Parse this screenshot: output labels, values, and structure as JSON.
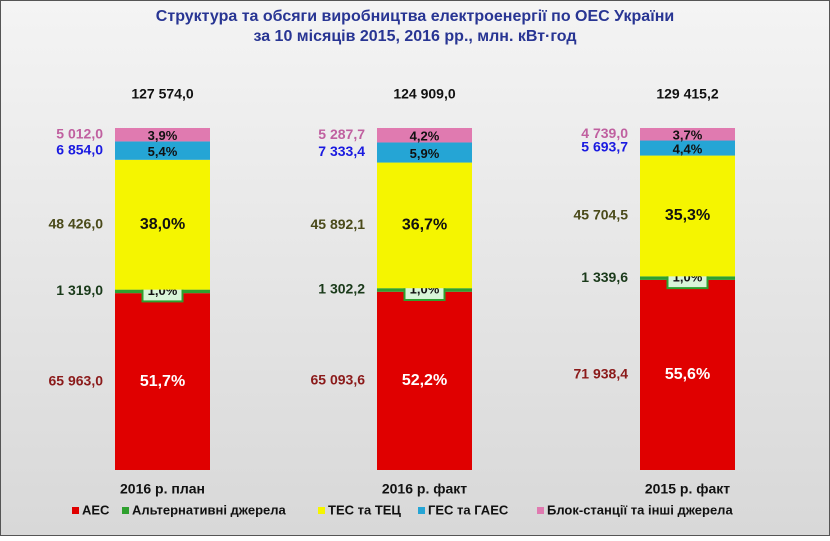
{
  "chart_data": {
    "type": "stacked-bar",
    "title": "Структура та обсяги виробництва електроенергії по ОЕС України",
    "subtitle": "за 10 місяців 2015, 2016 рр., млн. кВт·год",
    "categories": [
      "2016 р. план",
      "2016 р. факт",
      "2015 р. факт"
    ],
    "totals": [
      127574.0,
      124909.0,
      129415.2
    ],
    "total_labels": [
      "127 574,0",
      "124 909,0",
      "129 415,2"
    ],
    "series": [
      {
        "name": "АЕС",
        "color": "#e00000",
        "label_color": "#8b1a1a",
        "values": [
          65963.0,
          65093.6,
          71938.4
        ],
        "value_labels": [
          "65 963,0",
          "65 093,6",
          "71 938,4"
        ],
        "shares": [
          51.7,
          52.2,
          55.6
        ],
        "share_labels": [
          "51,7%",
          "52,2%",
          "55,6%"
        ]
      },
      {
        "name": "Альтернативні джерела",
        "color": "#2ea02e",
        "label_color": "#1a3a1a",
        "values": [
          1319.0,
          1302.2,
          1339.6
        ],
        "value_labels": [
          "1 319,0",
          "1 302,2",
          "1 339,6"
        ],
        "shares": [
          1.0,
          1.0,
          1.0
        ],
        "share_labels": [
          "1,0%",
          "1,0%",
          "1,0%"
        ]
      },
      {
        "name": "ТЕС та ТЕЦ",
        "color": "#f5f500",
        "label_color": "#4a4a1a",
        "values": [
          48426.0,
          45892.1,
          45704.5
        ],
        "value_labels": [
          "48 426,0",
          "45 892,1",
          "45 704,5"
        ],
        "shares": [
          38.0,
          36.7,
          35.3
        ],
        "share_labels": [
          "38,0%",
          "36,7%",
          "35,3%"
        ]
      },
      {
        "name": "ГЕС та ГАЕС",
        "color": "#25a5d5",
        "label_color": "#1a1ae0",
        "values": [
          6854.0,
          7333.4,
          5693.7
        ],
        "value_labels": [
          "6 854,0",
          "7 333,4",
          "5 693,7"
        ],
        "shares": [
          5.4,
          5.9,
          4.4
        ],
        "share_labels": [
          "5,4%",
          "5,9%",
          "4,4%"
        ]
      },
      {
        "name": "Блок-станції та інші джерела",
        "color": "#e07ab0",
        "label_color": "#c060a0",
        "values": [
          5012.0,
          5287.7,
          4739.0
        ],
        "value_labels": [
          "5 012,0",
          "5 287,7",
          "4 739,0"
        ],
        "shares": [
          3.9,
          4.2,
          3.7
        ],
        "share_labels": [
          "3,9%",
          "4,2%",
          "3,7%"
        ]
      }
    ]
  }
}
